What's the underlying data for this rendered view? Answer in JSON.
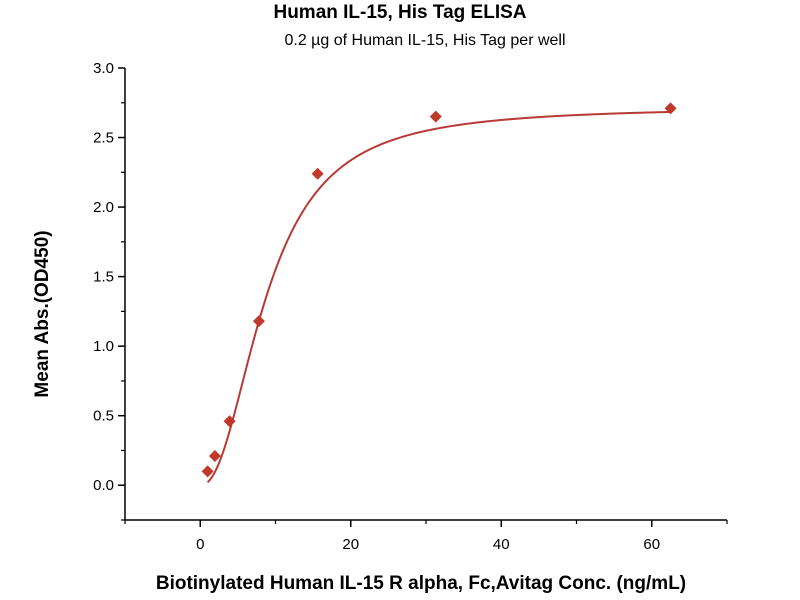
{
  "chart_data": {
    "type": "scatter",
    "title": "Human IL-15, His Tag ELISA",
    "subtitle": "0.2 µg of Human IL-15, His Tag per well",
    "xlabel": "Biotinylated Human IL-15 R alpha, Fc,Avitag Conc. (ng/mL)",
    "ylabel": "Mean Abs.(OD450)",
    "xlim": [
      -10,
      70
    ],
    "ylim": [
      -0.25,
      3.0
    ],
    "xticks": [
      0,
      20,
      40,
      60
    ],
    "yticks": [
      0.0,
      0.5,
      1.0,
      1.5,
      2.0,
      2.5,
      3.0
    ],
    "grid": false,
    "colors": {
      "points": "#c0392b",
      "curve": "#b83a34",
      "axis": "#000000"
    },
    "series": [
      {
        "points": [
          {
            "x": 0.98,
            "y": 0.1
          },
          {
            "x": 1.95,
            "y": 0.21
          },
          {
            "x": 3.9,
            "y": 0.46
          },
          {
            "x": 7.8,
            "y": 1.18
          },
          {
            "x": 15.6,
            "y": 2.24
          },
          {
            "x": 31.3,
            "y": 2.65
          },
          {
            "x": 62.5,
            "y": 2.71
          }
        ],
        "fit": "four-parameter logistic"
      }
    ]
  }
}
